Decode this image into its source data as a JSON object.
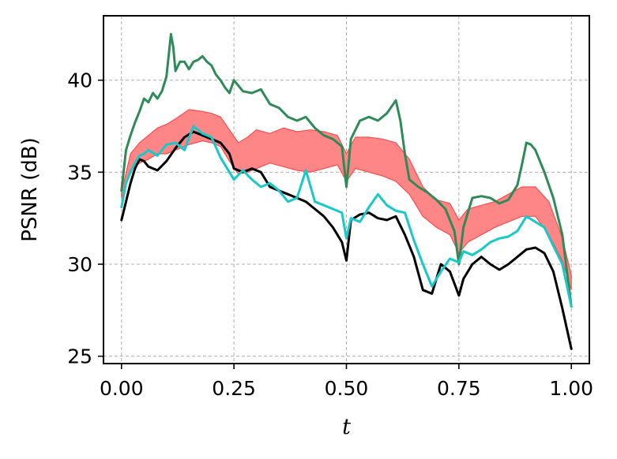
{
  "chart_data": {
    "type": "line",
    "xlabel": "t",
    "ylabel": "PSNR (dB)",
    "xlim": [
      -0.04,
      1.04
    ],
    "ylim": [
      24.6,
      43.5
    ],
    "xticks": [
      0.0,
      0.25,
      0.5,
      0.75,
      1.0
    ],
    "xtick_labels": [
      "0.00",
      "0.25",
      "0.50",
      "0.75",
      "1.00"
    ],
    "yticks": [
      25,
      30,
      35,
      40
    ],
    "ytick_labels": [
      "25",
      "30",
      "35",
      "40"
    ],
    "grid": true,
    "legend": "none",
    "colors": {
      "black_series": "#000000",
      "cyan_series": "#17c9c9",
      "green_series": "#2e8b57",
      "band_fill": "#ff7f7f",
      "band_edge": "#ff4c4c"
    },
    "band": {
      "x": [
        0.0,
        0.02,
        0.04,
        0.06,
        0.08,
        0.1,
        0.12,
        0.15,
        0.18,
        0.2,
        0.22,
        0.24,
        0.26,
        0.28,
        0.3,
        0.33,
        0.36,
        0.39,
        0.42,
        0.45,
        0.48,
        0.5,
        0.52,
        0.55,
        0.58,
        0.61,
        0.64,
        0.67,
        0.7,
        0.73,
        0.75,
        0.77,
        0.8,
        0.83,
        0.86,
        0.89,
        0.92,
        0.95,
        0.98,
        1.0
      ],
      "lower": [
        33.6,
        35.1,
        35.5,
        35.7,
        36.0,
        36.0,
        36.2,
        36.5,
        36.7,
        36.6,
        36.4,
        35.6,
        34.9,
        35.0,
        35.2,
        35.5,
        35.3,
        35.1,
        35.0,
        35.2,
        35.4,
        34.5,
        35.2,
        35.0,
        34.8,
        34.5,
        33.8,
        32.6,
        32.0,
        31.6,
        30.6,
        31.2,
        31.6,
        32.0,
        32.3,
        32.6,
        32.6,
        31.6,
        30.2,
        28.6
      ],
      "upper": [
        33.9,
        36.0,
        36.6,
        37.0,
        37.4,
        37.6,
        37.9,
        38.4,
        38.3,
        38.2,
        38.0,
        37.3,
        36.6,
        36.9,
        37.3,
        37.1,
        37.4,
        37.2,
        37.3,
        37.2,
        37.0,
        36.0,
        36.9,
        36.9,
        36.8,
        36.6,
        35.7,
        34.2,
        33.5,
        33.3,
        32.4,
        33.0,
        33.2,
        33.4,
        33.8,
        34.2,
        34.2,
        33.4,
        31.4,
        29.4
      ]
    },
    "series": [
      {
        "color_key": "green_series",
        "x": [
          0.0,
          0.01,
          0.02,
          0.03,
          0.04,
          0.05,
          0.06,
          0.07,
          0.08,
          0.09,
          0.1,
          0.11,
          0.115,
          0.12,
          0.13,
          0.14,
          0.15,
          0.16,
          0.17,
          0.18,
          0.19,
          0.2,
          0.21,
          0.22,
          0.23,
          0.24,
          0.25,
          0.27,
          0.29,
          0.31,
          0.33,
          0.35,
          0.37,
          0.39,
          0.41,
          0.43,
          0.45,
          0.47,
          0.49,
          0.5,
          0.51,
          0.53,
          0.55,
          0.57,
          0.59,
          0.61,
          0.62,
          0.63,
          0.64,
          0.66,
          0.68,
          0.7,
          0.72,
          0.74,
          0.75,
          0.76,
          0.78,
          0.8,
          0.82,
          0.84,
          0.86,
          0.88,
          0.89,
          0.9,
          0.91,
          0.92,
          0.94,
          0.96,
          0.98,
          1.0
        ],
        "y": [
          34.0,
          36.2,
          37.0,
          37.7,
          38.3,
          39.0,
          38.8,
          39.3,
          39.0,
          39.4,
          40.2,
          42.5,
          41.8,
          40.5,
          41.0,
          41.0,
          40.6,
          41.0,
          41.1,
          41.3,
          41.0,
          40.8,
          40.3,
          40.0,
          39.6,
          39.3,
          40.0,
          39.4,
          39.3,
          39.5,
          38.7,
          38.5,
          38.0,
          37.8,
          38.0,
          37.4,
          37.0,
          36.8,
          36.4,
          34.2,
          36.8,
          37.8,
          38.0,
          37.8,
          38.2,
          38.9,
          37.8,
          36.0,
          34.6,
          34.2,
          33.9,
          33.5,
          33.0,
          31.8,
          30.0,
          32.0,
          33.6,
          33.7,
          33.6,
          33.3,
          33.5,
          34.3,
          35.4,
          36.6,
          36.5,
          36.2,
          35.0,
          33.6,
          31.6,
          27.7
        ]
      },
      {
        "color_key": "black_series",
        "x": [
          0.0,
          0.01,
          0.02,
          0.03,
          0.04,
          0.05,
          0.06,
          0.08,
          0.1,
          0.12,
          0.14,
          0.16,
          0.18,
          0.2,
          0.22,
          0.24,
          0.25,
          0.27,
          0.29,
          0.31,
          0.33,
          0.35,
          0.37,
          0.39,
          0.41,
          0.43,
          0.45,
          0.47,
          0.49,
          0.5,
          0.51,
          0.53,
          0.55,
          0.57,
          0.59,
          0.61,
          0.63,
          0.65,
          0.67,
          0.69,
          0.71,
          0.73,
          0.75,
          0.76,
          0.78,
          0.8,
          0.82,
          0.84,
          0.86,
          0.88,
          0.9,
          0.92,
          0.94,
          0.96,
          0.98,
          1.0
        ],
        "y": [
          32.4,
          33.4,
          34.4,
          35.2,
          35.7,
          35.6,
          35.3,
          35.1,
          35.6,
          36.3,
          36.9,
          37.2,
          37.0,
          36.8,
          36.6,
          36.0,
          35.2,
          35.0,
          35.2,
          35.0,
          34.2,
          34.0,
          33.8,
          33.6,
          33.4,
          33.0,
          32.6,
          32.0,
          31.2,
          30.2,
          32.4,
          32.7,
          32.8,
          32.5,
          32.4,
          32.6,
          31.6,
          30.4,
          28.6,
          28.4,
          30.0,
          29.6,
          28.3,
          29.2,
          30.0,
          30.4,
          30.0,
          29.7,
          30.0,
          30.4,
          30.8,
          30.9,
          30.6,
          29.6,
          27.6,
          25.4
        ]
      },
      {
        "color_key": "cyan_series",
        "x": [
          0.0,
          0.01,
          0.02,
          0.03,
          0.04,
          0.05,
          0.06,
          0.08,
          0.1,
          0.12,
          0.14,
          0.16,
          0.18,
          0.2,
          0.22,
          0.24,
          0.25,
          0.27,
          0.29,
          0.31,
          0.33,
          0.35,
          0.37,
          0.39,
          0.41,
          0.43,
          0.45,
          0.47,
          0.49,
          0.5,
          0.51,
          0.53,
          0.55,
          0.57,
          0.59,
          0.61,
          0.63,
          0.65,
          0.67,
          0.69,
          0.71,
          0.73,
          0.75,
          0.76,
          0.78,
          0.8,
          0.82,
          0.84,
          0.86,
          0.88,
          0.9,
          0.92,
          0.94,
          0.96,
          0.98,
          1.0
        ],
        "y": [
          33.1,
          34.4,
          35.0,
          35.5,
          35.9,
          36.0,
          36.2,
          35.9,
          36.5,
          36.6,
          36.2,
          37.5,
          37.1,
          36.9,
          35.8,
          35.0,
          34.6,
          35.1,
          34.6,
          34.2,
          34.4,
          34.0,
          33.4,
          33.6,
          35.1,
          33.4,
          33.2,
          33.0,
          32.8,
          31.4,
          32.5,
          32.3,
          33.1,
          33.8,
          33.2,
          32.9,
          32.8,
          31.3,
          30.0,
          28.8,
          29.6,
          30.3,
          30.1,
          30.7,
          30.5,
          30.8,
          31.2,
          31.4,
          31.5,
          31.8,
          32.6,
          32.3,
          32.0,
          31.0,
          30.0,
          27.7
        ]
      }
    ]
  }
}
